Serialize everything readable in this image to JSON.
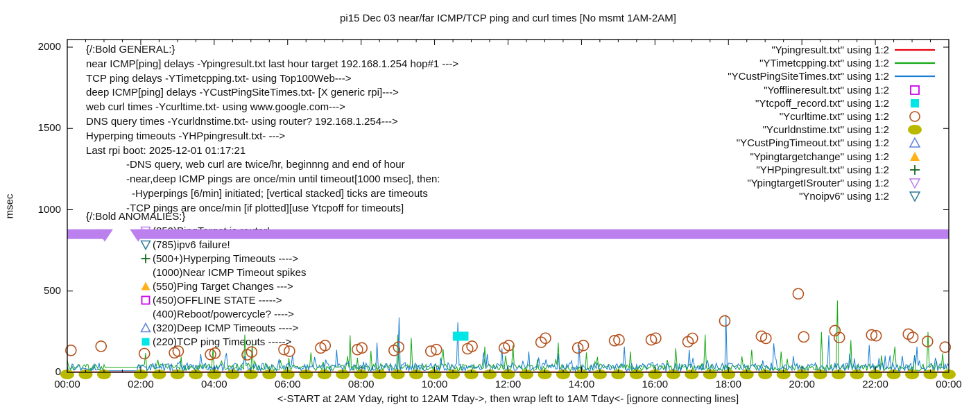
{
  "chart_data": {
    "type": "line",
    "title": "pi15 Dec 03  near/far ICMP/TCP ping and curl times [No msmt 1AM-2AM]",
    "ylabel": "msec",
    "xlabel": "<-START at 2AM Yday, right to 12AM Tday->, then wrap left to 1AM Tday<- [ignore connecting lines]",
    "xlim_hours": [
      0,
      24
    ],
    "ylim_msec": [
      0,
      2046
    ],
    "x_tick_labels": [
      "00:00",
      "02:00",
      "04:00",
      "06:00",
      "08:00",
      "10:00",
      "12:00",
      "14:00",
      "16:00",
      "18:00",
      "20:00",
      "22:00",
      "00:00"
    ],
    "x_tick_hours": [
      0,
      2,
      4,
      6,
      8,
      10,
      12,
      14,
      16,
      18,
      20,
      22,
      24
    ],
    "y_tick_labels": [
      "0",
      "500",
      "1000",
      "1500",
      "2000"
    ],
    "y_tick_msec": [
      0,
      500,
      1000,
      1500,
      2000
    ],
    "grid": false,
    "legend_position": "top-right-inside",
    "no_measurement_window_hours": [
      1.03,
      1.93
    ],
    "series": [
      {
        "name": "Ypingresult.txt",
        "legend": "\"Ypingresult.txt\" using 1:2",
        "render": "flatline",
        "color": "#e8000f",
        "flat_msec": 3
      },
      {
        "name": "YTimetcpping.txt",
        "legend": "\"YTimetcpping.txt\" using 1:2",
        "render": "noise",
        "color": "#14a814",
        "seed": 7,
        "base_msec": 8,
        "noise_msec": 42,
        "burst_msec": 70,
        "gap_flat_msec": 30,
        "spikes": [
          [
            2.12,
            118
          ],
          [
            3.1,
            95
          ],
          [
            3.97,
            148
          ],
          [
            4.84,
            232
          ],
          [
            5.03,
            182
          ],
          [
            6.62,
            122
          ],
          [
            7.7,
            228
          ],
          [
            8.27,
            132
          ],
          [
            8.99,
            232
          ],
          [
            9.37,
            212
          ],
          [
            10.22,
            142
          ],
          [
            11.37,
            158
          ],
          [
            12.12,
            168
          ],
          [
            13.37,
            182
          ],
          [
            14.12,
            122
          ],
          [
            15.32,
            128
          ],
          [
            16.57,
            148
          ],
          [
            17.37,
            232
          ],
          [
            18.62,
            138
          ],
          [
            19.42,
            128
          ],
          [
            20.54,
            248
          ],
          [
            20.97,
            442
          ],
          [
            21.32,
            198
          ],
          [
            22.52,
            158
          ],
          [
            23.42,
            248
          ],
          [
            23.82,
            118
          ]
        ]
      },
      {
        "name": "YCustPingSiteTimes.txt",
        "legend": "\"YCustPingSiteTimes.txt\" using 1:2",
        "render": "noise",
        "color": "#1a7fd4",
        "seed": 13,
        "base_msec": 6,
        "noise_msec": 52,
        "burst_msec": 80,
        "gap_flat_msec": 10,
        "spikes": [
          [
            4.32,
            118
          ],
          [
            6.12,
            108
          ],
          [
            7.32,
            138
          ],
          [
            8.44,
            182
          ],
          [
            9.04,
            338
          ],
          [
            10.64,
            308
          ],
          [
            11.82,
            148
          ],
          [
            12.57,
            128
          ],
          [
            13.92,
            168
          ],
          [
            15.17,
            158
          ],
          [
            16.92,
            138
          ],
          [
            17.92,
            355
          ],
          [
            19.22,
            178
          ],
          [
            20.72,
            228
          ],
          [
            21.82,
            168
          ],
          [
            23.12,
            158
          ]
        ]
      },
      {
        "name": "Yofflineresult.txt",
        "legend": "\"Yofflineresult.txt\" using 1:2",
        "render": "points",
        "marker": "square-open",
        "color": "#cc00ee",
        "points": []
      },
      {
        "name": "Ytcpoff_record.txt",
        "legend": "\"Ytcpoff_record.txt\" using 1:2",
        "render": "points",
        "marker": "square-filled",
        "color": "#00e5e5",
        "points": [
          [
            10.62,
            222
          ],
          [
            10.8,
            222
          ]
        ]
      },
      {
        "name": "Ycurltime.txt",
        "legend": "\"Ycurltime.txt\" using 1:2",
        "render": "points",
        "marker": "circle-open",
        "color": "#b5521d",
        "points": [
          [
            0.1,
            135
          ],
          [
            0.92,
            160
          ],
          [
            2.1,
            115
          ],
          [
            2.92,
            120
          ],
          [
            3.02,
            130
          ],
          [
            3.9,
            110
          ],
          [
            4.02,
            118
          ],
          [
            4.9,
            108
          ],
          [
            5.02,
            125
          ],
          [
            5.9,
            140
          ],
          [
            6.05,
            130
          ],
          [
            6.9,
            150
          ],
          [
            7.02,
            165
          ],
          [
            7.9,
            140
          ],
          [
            8.02,
            150
          ],
          [
            8.9,
            135
          ],
          [
            9.02,
            155
          ],
          [
            9.9,
            130
          ],
          [
            10.05,
            140
          ],
          [
            10.9,
            145
          ],
          [
            11.02,
            160
          ],
          [
            11.9,
            150
          ],
          [
            12.02,
            165
          ],
          [
            12.9,
            185
          ],
          [
            13.02,
            210
          ],
          [
            13.9,
            150
          ],
          [
            14.05,
            165
          ],
          [
            14.9,
            195
          ],
          [
            15.02,
            200
          ],
          [
            15.9,
            200
          ],
          [
            16.02,
            210
          ],
          [
            16.9,
            188
          ],
          [
            17.02,
            209
          ],
          [
            17.9,
            316
          ],
          [
            18.9,
            222
          ],
          [
            19.02,
            209
          ],
          [
            19.9,
            483
          ],
          [
            20.05,
            218
          ],
          [
            20.9,
            256
          ],
          [
            21.02,
            214
          ],
          [
            21.9,
            230
          ],
          [
            22.02,
            225
          ],
          [
            22.9,
            235
          ],
          [
            23.02,
            215
          ],
          [
            23.42,
            190
          ],
          [
            23.9,
            155
          ]
        ]
      },
      {
        "name": "Ycurldnstime.txt",
        "legend": "\"Ycurldnstime.txt\" using 1:2",
        "render": "points",
        "marker": "dot-filled",
        "color": "#b9b900",
        "value_msec": 0,
        "hours": [
          0,
          0.5,
          1,
          2,
          2.5,
          3,
          3.5,
          4,
          4.5,
          5,
          5.5,
          6,
          6.5,
          7,
          7.5,
          8,
          8.5,
          9,
          9.5,
          10,
          10.5,
          11,
          11.5,
          12,
          12.5,
          13,
          13.5,
          14,
          14.5,
          15,
          15.5,
          16,
          16.5,
          17,
          17.5,
          18,
          18.5,
          19,
          19.5,
          20,
          20.5,
          21,
          21.5,
          22,
          22.5,
          23,
          23.5,
          24
        ],
        "points": []
      },
      {
        "name": "YCustPingTimeout.txt",
        "legend": "\"YCustPingTimeout.txt\" using 1:2",
        "render": "points",
        "marker": "triangle-up-open",
        "color": "#5b82d8",
        "points": []
      },
      {
        "name": "Ypingtargetchange",
        "legend": "\"Ypingtargetchange\" using 1:2",
        "render": "points",
        "marker": "triangle-up-filled",
        "color": "#ffb117",
        "points": []
      },
      {
        "name": "YHPpingresult.txt",
        "legend": "\"YHPpingresult.txt\" using 1:2",
        "render": "points",
        "marker": "plus",
        "color": "#12691e",
        "points": []
      },
      {
        "name": "YpingtargetISrouter",
        "legend": "\"YpingtargetISrouter\" using 1:2",
        "render": "band",
        "marker": "triangle-down-open",
        "color": "#bb80ee",
        "band_msec": 850,
        "band_segments_hours": [
          [
            0,
            1.02
          ],
          [
            1.93,
            24
          ]
        ]
      },
      {
        "name": "Ynoipv6",
        "legend": "\"Ynoipv6\" using 1:2",
        "render": "points",
        "marker": "triangle-down-open",
        "color": "#2e7a99",
        "points": []
      }
    ],
    "annotations": {
      "general": {
        "lines": [
          {
            "text": "{/:Bold GENERAL:}",
            "indent": 0
          },
          {
            "text": "near ICMP[ping] delays -Ypingresult.txt last hour target 192.168.1.254 hop#1 --->",
            "indent": 0
          },
          {
            "text": "TCP ping delays -YTimetcpping.txt- using Top100Web--->",
            "indent": 0
          },
          {
            "text": "deep ICMP[ping] delays -YCustPingSiteTimes.txt- [X generic rpi]--->",
            "indent": 0
          },
          {
            "text": "web curl times -Ycurltime.txt- using www.google.com--->",
            "indent": 0
          },
          {
            "text": "DNS query times -Ycurldnstime.txt- using router? 192.168.1.254--->",
            "indent": 0
          },
          {
            "text": "Hyperping timeouts -YHPpingresult.txt- --->",
            "indent": 0
          },
          {
            "text": "Last rpi boot: 2025-12-01 01:17:21",
            "indent": 0
          },
          {
            "text": "-DNS query, web curl are twice/hr, beginnng and end of hour",
            "indent": 1
          },
          {
            "text": "-near,deep ICMP pings are once/min until timeout[1000 msec], then:",
            "indent": 1
          },
          {
            "text": "-Hyperpings [6/min] initiated; [vertical stacked] ticks are timeouts",
            "indent": 2
          },
          {
            "text": "-TCP pings are once/min [if plotted][use Ytcpoff for timeouts]",
            "indent": 1
          }
        ]
      },
      "anomalies": {
        "header": "{/:Bold ANOMALIES:}",
        "lines": [
          {
            "glyph": "triangle-down-open",
            "color": "#bb80ee",
            "text": "(850)PingTarget is router!"
          },
          {
            "glyph": "triangle-down-open",
            "color": "#2e7a99",
            "text": "(785)ipv6 failure!"
          },
          {
            "glyph": "plus",
            "color": "#12691e",
            "text": "(500+)Hyperping Timeouts ---->"
          },
          {
            "glyph": "none",
            "color": "",
            "text": "(1000)Near ICMP Timeout spikes"
          },
          {
            "glyph": "triangle-up-filled",
            "color": "#ffb117",
            "text": "(550)Ping Target Changes --->"
          },
          {
            "glyph": "square-open",
            "color": "#cc00ee",
            "text": "(450)OFFLINE STATE ----->"
          },
          {
            "glyph": "none",
            "color": "",
            "text": "(400)Reboot/powercycle? ---->"
          },
          {
            "glyph": "triangle-up-open",
            "color": "#5b82d8",
            "text": "(320)Deep ICMP Timeouts ---->"
          },
          {
            "glyph": "square-filled",
            "color": "#00e5e5",
            "text": "(220)TCP ping Timeouts ----->"
          }
        ]
      }
    },
    "axis_color": "#000000",
    "text_color": "#111111"
  }
}
